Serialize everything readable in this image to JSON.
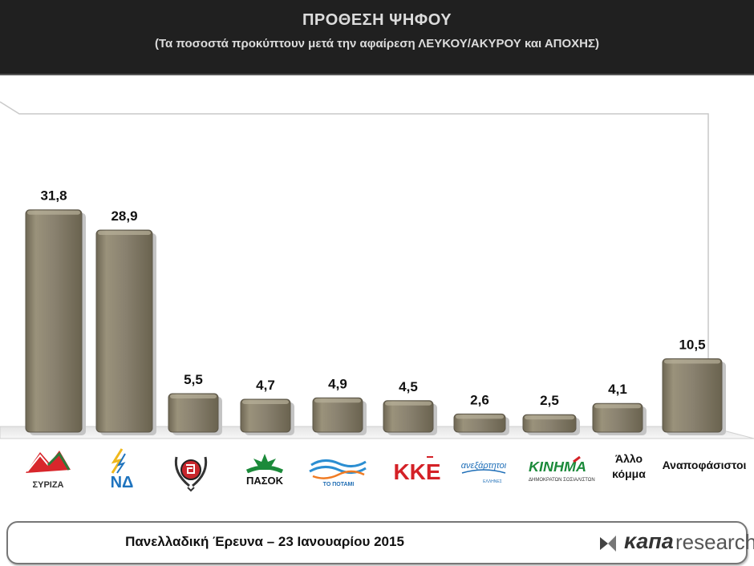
{
  "header": {
    "title": "ΠΡΟΘΕΣΗ ΨΗΦΟΥ",
    "subtitle": "(Τα ποσοστά προκύπτουν μετά την αφαίρεση ΛΕΥΚΟΥ/ΑΚΥΡΟΥ και ΑΠΟΧΗΣ)"
  },
  "chart_data": {
    "type": "bar",
    "categories": [
      "ΣΥΡΙΖΑ",
      "ΝΔ",
      "Χρυσή Αυγή",
      "ΠΑΣΟΚ",
      "ΤΟ ΠΟΤΑΜΙ",
      "ΚΚΕ",
      "ΑΝΕΞΑΡΤΗΤΟΙ ΕΛΛΗΝΕΣ",
      "ΚΙΝΗΜΑ",
      "Άλλο κόμμα",
      "Αναποφάσιστοι"
    ],
    "values": [
      31.8,
      28.9,
      5.5,
      4.7,
      4.9,
      4.5,
      2.6,
      2.5,
      4.1,
      10.5
    ],
    "value_labels": [
      "31,8",
      "28,9",
      "5,5",
      "4,7",
      "4,9",
      "4,5",
      "2,6",
      "2,5",
      "4,1",
      "10,5"
    ],
    "bar_color": "#857d68",
    "ylim": [
      0,
      34
    ],
    "grid": false
  },
  "logos": {
    "syriza_text": "ΣΥΡΙΖΑ",
    "nd_text": "ΝΔ",
    "pasok_text": "ΠΑΣΟΚ",
    "potami_text": "ΤΟ ΠΟΤΑΜΙ",
    "kke_text": "ΚΚΕ",
    "anel_text": "ανεξάρτητοι",
    "anel_sub": "ΕΛΛΗΝΕΣ",
    "kinima_text": "ΚΙΝΗΜΑ",
    "kinima_sub": "ΔΗΜΟΚΡΑΤΩΝ ΣΟΣΙΑΛΙΣΤΩΝ",
    "other_label_1": "Άλλο",
    "other_label_2": "κόμμα",
    "undecided_label": "Αναποφάσιστοι"
  },
  "footer": {
    "text": "Πανελλαδική Έρευνα – 23 Ιανουαρίου 2015",
    "brand_k": "κапа",
    "brand_r": "research"
  }
}
